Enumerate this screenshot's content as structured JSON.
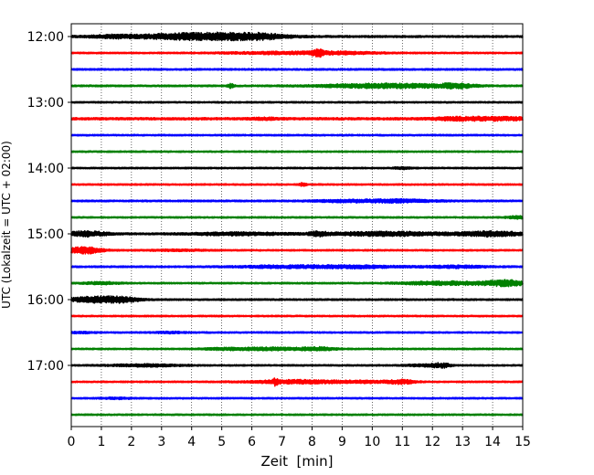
{
  "chart_data": {
    "type": "line",
    "title": "",
    "xlabel": "Zeit  [min]",
    "ylabel": "UTC (Lokalzeit = UTC + 02:00)",
    "xlim": [
      0,
      15
    ],
    "x_ticks": [
      "0",
      "1",
      "2",
      "3",
      "4",
      "5",
      "6",
      "7",
      "8",
      "9",
      "10",
      "11",
      "12",
      "13",
      "14",
      "15"
    ],
    "y_ticks": [
      {
        "label": "12:00",
        "row": 0
      },
      {
        "label": "13:00",
        "row": 4
      },
      {
        "label": "14:00",
        "row": 8
      },
      {
        "label": "15:00",
        "row": 12
      },
      {
        "label": "16:00",
        "row": 16
      },
      {
        "label": "17:00",
        "row": 20
      }
    ],
    "grid": "vertical dotted at each minute",
    "row_interval_minutes": 15,
    "trace_colors": [
      "#000000",
      "#ff0000",
      "#0000ff",
      "#008000"
    ],
    "traces": [
      {
        "start": "12:00",
        "amplitude": 0.45,
        "events": [
          [
            3.5,
            2.2,
            0.9
          ],
          [
            5.2,
            1.8,
            1.1
          ],
          [
            6.3,
            0.6,
            0.7
          ],
          [
            1.3,
            0.6,
            0.4
          ]
        ]
      },
      {
        "start": "12:15",
        "amplitude": 0.35,
        "events": [
          [
            8.2,
            0.15,
            1.6
          ],
          [
            8.7,
            1.5,
            0.6
          ],
          [
            6.5,
            1.6,
            0.4
          ]
        ]
      },
      {
        "start": "12:30",
        "amplitude": 0.4,
        "events": []
      },
      {
        "start": "12:45",
        "amplitude": 0.4,
        "events": [
          [
            5.3,
            0.1,
            0.9
          ],
          [
            9.5,
            1.6,
            0.6
          ],
          [
            11.2,
            1.5,
            0.7
          ],
          [
            12.8,
            0.6,
            0.9
          ]
        ]
      },
      {
        "start": "13:00",
        "amplitude": 0.35,
        "events": []
      },
      {
        "start": "13:15",
        "amplitude": 0.55,
        "events": [
          [
            14.2,
            1.5,
            0.6
          ],
          [
            12.8,
            0.8,
            0.4
          ],
          [
            6.5,
            0.5,
            0.3
          ]
        ]
      },
      {
        "start": "13:30",
        "amplitude": 0.35,
        "events": []
      },
      {
        "start": "13:45",
        "amplitude": 0.35,
        "events": []
      },
      {
        "start": "14:00",
        "amplitude": 0.35,
        "events": [
          [
            11.0,
            0.3,
            0.4
          ]
        ]
      },
      {
        "start": "14:15",
        "amplitude": 0.35,
        "events": [
          [
            7.7,
            0.1,
            0.8
          ]
        ]
      },
      {
        "start": "14:30",
        "amplitude": 0.4,
        "events": [
          [
            10.8,
            1.2,
            0.7
          ],
          [
            9.0,
            1.0,
            0.4
          ]
        ]
      },
      {
        "start": "14:45",
        "amplitude": 0.35,
        "events": [
          [
            14.8,
            0.3,
            0.6
          ]
        ]
      },
      {
        "start": "15:00",
        "amplitude": 0.45,
        "events": [
          [
            0.5,
            0.7,
            1.1
          ],
          [
            5.5,
            1.5,
            0.6
          ],
          [
            8.2,
            0.3,
            0.8
          ],
          [
            10.5,
            2.0,
            0.9
          ],
          [
            14.0,
            1.0,
            1.1
          ]
        ]
      },
      {
        "start": "15:15",
        "amplitude": 0.35,
        "events": [
          [
            0.4,
            0.6,
            1.6
          ],
          [
            3.5,
            1.0,
            0.3
          ]
        ]
      },
      {
        "start": "15:30",
        "amplitude": 0.4,
        "events": [
          [
            7.0,
            1.5,
            0.5
          ],
          [
            9.5,
            1.5,
            0.6
          ],
          [
            12.8,
            1.0,
            0.5
          ]
        ]
      },
      {
        "start": "15:45",
        "amplitude": 0.35,
        "events": [
          [
            13.3,
            1.6,
            0.7
          ],
          [
            14.5,
            0.6,
            1.0
          ],
          [
            1.0,
            0.6,
            0.5
          ],
          [
            11.8,
            1.0,
            0.4
          ]
        ]
      },
      {
        "start": "16:00",
        "amplitude": 0.4,
        "events": [
          [
            0.7,
            0.8,
            1.3
          ],
          [
            1.7,
            0.6,
            1.1
          ]
        ]
      },
      {
        "start": "16:15",
        "amplitude": 0.35,
        "events": []
      },
      {
        "start": "16:30",
        "amplitude": 0.35,
        "events": [
          [
            0.3,
            0.5,
            0.3
          ],
          [
            3.3,
            0.6,
            0.3
          ]
        ]
      },
      {
        "start": "16:45",
        "amplitude": 0.35,
        "events": [
          [
            6.5,
            1.2,
            0.6
          ],
          [
            8.2,
            0.6,
            0.7
          ],
          [
            5.0,
            0.8,
            0.3
          ]
        ]
      },
      {
        "start": "17:00",
        "amplitude": 0.35,
        "events": [
          [
            2.5,
            1.2,
            0.5
          ],
          [
            12.3,
            0.3,
            1.0
          ],
          [
            11.7,
            0.6,
            0.4
          ]
        ]
      },
      {
        "start": "17:15",
        "amplitude": 0.35,
        "events": [
          [
            6.8,
            0.1,
            1.4
          ],
          [
            7.6,
            1.6,
            0.8
          ],
          [
            11.0,
            0.4,
            0.9
          ],
          [
            10.0,
            1.0,
            0.4
          ]
        ]
      },
      {
        "start": "17:30",
        "amplitude": 0.35,
        "events": [
          [
            1.5,
            0.5,
            0.3
          ]
        ]
      },
      {
        "start": "17:45",
        "amplitude": 0.35,
        "events": []
      }
    ]
  }
}
